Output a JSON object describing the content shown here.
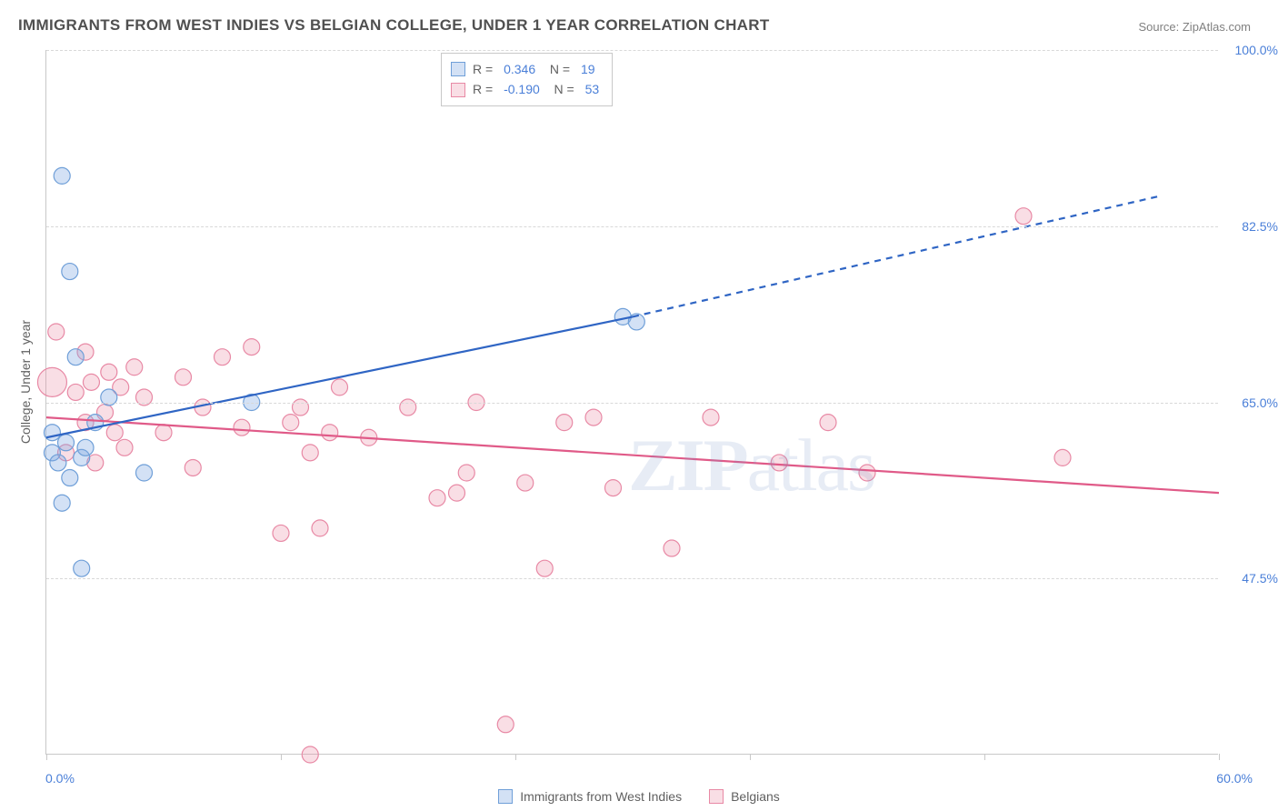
{
  "title": "IMMIGRANTS FROM WEST INDIES VS BELGIAN COLLEGE, UNDER 1 YEAR CORRELATION CHART",
  "source": "Source: ZipAtlas.com",
  "watermark_bold": "ZIP",
  "watermark_light": "atlas",
  "y_axis_title": "College, Under 1 year",
  "chart": {
    "type": "scatter",
    "xlim": [
      0,
      60
    ],
    "ylim": [
      30,
      100
    ],
    "x_tick_labels": {
      "min": "0.0%",
      "max": "60.0%"
    },
    "y_ticks": [
      {
        "v": 100.0,
        "label": "100.0%"
      },
      {
        "v": 82.5,
        "label": "82.5%"
      },
      {
        "v": 65.0,
        "label": "65.0%"
      },
      {
        "v": 47.5,
        "label": "47.5%"
      }
    ],
    "x_tick_positions": [
      0,
      12,
      24,
      36,
      48,
      60
    ],
    "background_color": "#ffffff",
    "grid_color": "#d8d8d8",
    "axis_color": "#c8c8c8",
    "series": [
      {
        "key": "west_indies",
        "label": "Immigrants from West Indies",
        "fill": "rgba(130,170,225,0.35)",
        "stroke": "#6f9fd8",
        "line_color": "#2f65c4",
        "marker_r": 9,
        "R": "0.346",
        "N": "19",
        "trend": {
          "x1": 0,
          "y1": 61.5,
          "x2": 30,
          "y2": 73.5,
          "x2_ext": 57,
          "y2_ext": 85.5
        },
        "points": [
          {
            "x": 0.3,
            "y": 62.0
          },
          {
            "x": 0.3,
            "y": 60.0
          },
          {
            "x": 0.6,
            "y": 59.0
          },
          {
            "x": 0.8,
            "y": 87.5
          },
          {
            "x": 0.8,
            "y": 55.0
          },
          {
            "x": 1.0,
            "y": 61.0
          },
          {
            "x": 1.2,
            "y": 78.0
          },
          {
            "x": 1.2,
            "y": 57.5
          },
          {
            "x": 1.5,
            "y": 69.5
          },
          {
            "x": 1.8,
            "y": 48.5
          },
          {
            "x": 1.8,
            "y": 59.5
          },
          {
            "x": 2.0,
            "y": 60.5
          },
          {
            "x": 2.5,
            "y": 63.0
          },
          {
            "x": 3.2,
            "y": 65.5
          },
          {
            "x": 5.0,
            "y": 58.0
          },
          {
            "x": 10.5,
            "y": 65.0
          },
          {
            "x": 29.5,
            "y": 73.5
          },
          {
            "x": 30.2,
            "y": 73.0
          }
        ]
      },
      {
        "key": "belgians",
        "label": "Belgians",
        "fill": "rgba(235,145,170,0.30)",
        "stroke": "#e889a5",
        "line_color": "#e05a88",
        "marker_r": 9,
        "R": "-0.190",
        "N": "53",
        "trend": {
          "x1": 0,
          "y1": 63.5,
          "x2": 60,
          "y2": 56.0
        },
        "points": [
          {
            "x": 0.3,
            "y": 67.0,
            "r": 16
          },
          {
            "x": 0.5,
            "y": 72.0
          },
          {
            "x": 1.0,
            "y": 60.0
          },
          {
            "x": 1.5,
            "y": 66.0
          },
          {
            "x": 2.0,
            "y": 70.0
          },
          {
            "x": 2.0,
            "y": 63.0
          },
          {
            "x": 2.3,
            "y": 67.0
          },
          {
            "x": 2.5,
            "y": 59.0
          },
          {
            "x": 3.0,
            "y": 64.0
          },
          {
            "x": 3.2,
            "y": 68.0
          },
          {
            "x": 3.5,
            "y": 62.0
          },
          {
            "x": 3.8,
            "y": 66.5
          },
          {
            "x": 4.0,
            "y": 60.5
          },
          {
            "x": 4.5,
            "y": 68.5
          },
          {
            "x": 5.0,
            "y": 65.5
          },
          {
            "x": 6.0,
            "y": 62.0
          },
          {
            "x": 7.0,
            "y": 67.5
          },
          {
            "x": 7.5,
            "y": 58.5
          },
          {
            "x": 8.0,
            "y": 64.5
          },
          {
            "x": 9.0,
            "y": 69.5
          },
          {
            "x": 10.0,
            "y": 62.5
          },
          {
            "x": 10.5,
            "y": 70.5
          },
          {
            "x": 12.0,
            "y": 52.0
          },
          {
            "x": 12.5,
            "y": 63.0
          },
          {
            "x": 13.0,
            "y": 64.5
          },
          {
            "x": 13.5,
            "y": 60.0
          },
          {
            "x": 13.5,
            "y": 30.0
          },
          {
            "x": 14.0,
            "y": 52.5
          },
          {
            "x": 14.5,
            "y": 62.0
          },
          {
            "x": 15.0,
            "y": 66.5
          },
          {
            "x": 16.5,
            "y": 61.5
          },
          {
            "x": 18.5,
            "y": 64.5
          },
          {
            "x": 20.0,
            "y": 55.5
          },
          {
            "x": 21.0,
            "y": 56.0
          },
          {
            "x": 21.5,
            "y": 58.0
          },
          {
            "x": 22.0,
            "y": 65.0
          },
          {
            "x": 23.5,
            "y": 33.0
          },
          {
            "x": 24.5,
            "y": 57.0
          },
          {
            "x": 25.5,
            "y": 48.5
          },
          {
            "x": 26.5,
            "y": 63.0
          },
          {
            "x": 28.0,
            "y": 63.5
          },
          {
            "x": 29.0,
            "y": 56.5
          },
          {
            "x": 32.0,
            "y": 50.5
          },
          {
            "x": 34.0,
            "y": 63.5
          },
          {
            "x": 37.5,
            "y": 59.0
          },
          {
            "x": 40.0,
            "y": 63.0
          },
          {
            "x": 42.0,
            "y": 58.0
          },
          {
            "x": 50.0,
            "y": 83.5
          },
          {
            "x": 52.0,
            "y": 59.5
          }
        ]
      }
    ]
  }
}
